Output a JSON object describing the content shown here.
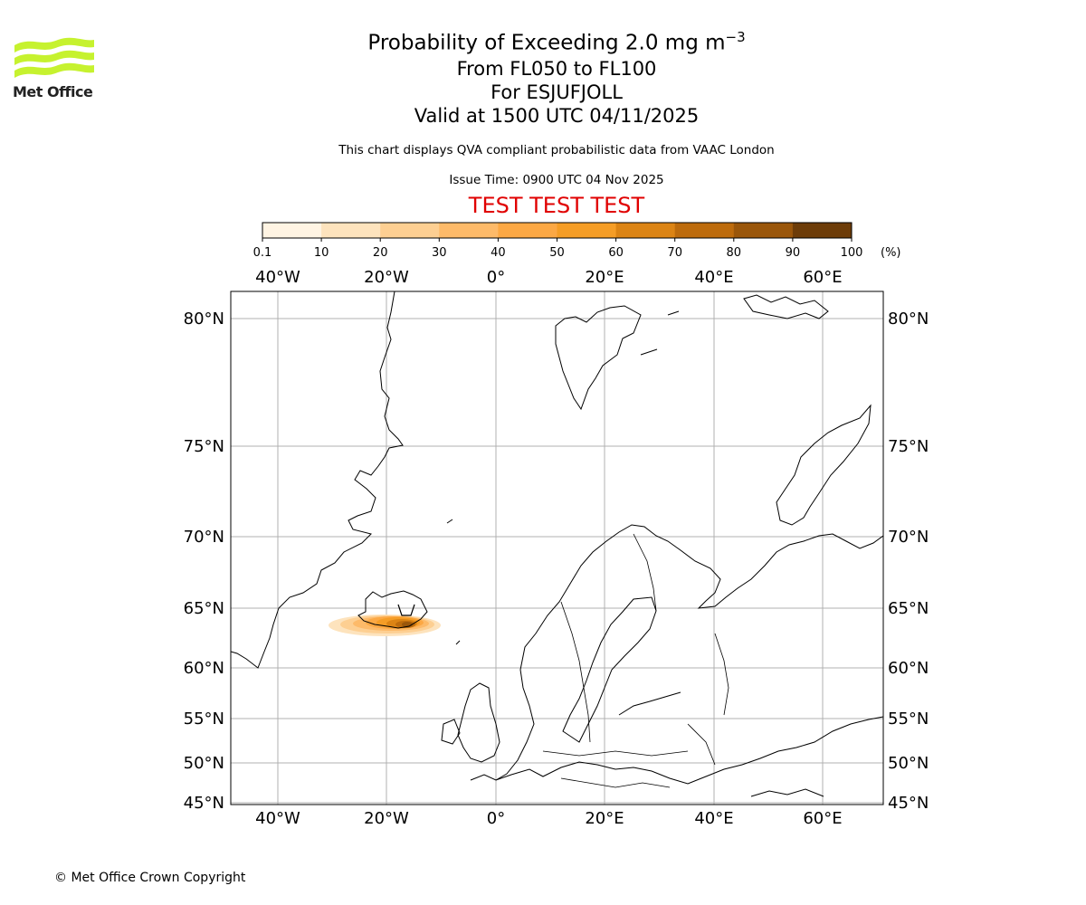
{
  "header": {
    "logo_text": "Met Office",
    "title_prefix": "Probability of Exceeding 2.0 mg m",
    "title_superscript": "−3",
    "level_range": "From FL050 to FL100",
    "volcano": "For ESJUFJOLL",
    "valid_time": "Valid at 1500 UTC 04/11/2025",
    "subtitle": "This chart displays QVA compliant probabilistic data from VAAC London",
    "issue_time": "Issue Time: 0900 UTC 04 Nov 2025",
    "test_banner": "TEST TEST TEST"
  },
  "colorbar": {
    "tick_labels": [
      "0.1",
      "10",
      "20",
      "30",
      "40",
      "50",
      "60",
      "70",
      "80",
      "90",
      "100"
    ],
    "unit": "(%)",
    "colors": [
      "#fff4e3",
      "#fde3bd",
      "#fdcf92",
      "#fdba69",
      "#fca844",
      "#f59d26",
      "#dc8414",
      "#bd6b0c",
      "#9a560a",
      "#6d3c08"
    ]
  },
  "map": {
    "lon_labels": [
      "40°W",
      "20°W",
      "0°",
      "20°E",
      "40°E",
      "60°E"
    ],
    "lat_labels": [
      "80°N",
      "75°N",
      "70°N",
      "65°N",
      "60°N",
      "55°N",
      "50°N",
      "45°N"
    ],
    "gridline_color": "#b0b0b0",
    "plume_probability_max_percent": 90
  },
  "footer": {
    "copyright": "© Met Office Crown Copyright"
  }
}
